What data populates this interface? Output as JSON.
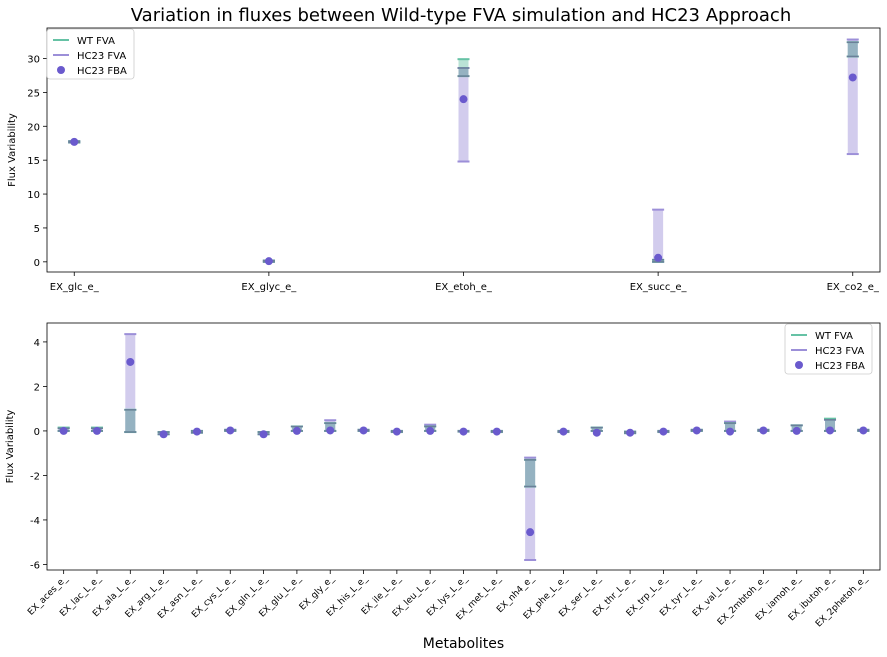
{
  "title": "Variation in fluxes between Wild-type FVA simulation and HC23 Approach",
  "colors": {
    "wt_fva": "#66c2a5",
    "hc23_fva": "#9c8fd8",
    "hc23_fba": "#6a5acd",
    "overlap": "#8da0b8"
  },
  "chart_data": [
    {
      "type": "errorbar",
      "title": "Variation in fluxes between Wild-type FVA simulation and HC23 Approach",
      "xlabel": "",
      "ylabel": "Flux Variability",
      "ylim": [
        -1.5,
        34.5
      ],
      "yticks": [
        0,
        5,
        10,
        15,
        20,
        25,
        30
      ],
      "legend_position": "top-left",
      "legend": [
        "WT FVA",
        "HC23 FVA",
        "HC23 FBA"
      ],
      "categories": [
        "EX_glc_e_",
        "EX_glyc_e_",
        "EX_etoh_e_",
        "EX_succ_e_",
        "EX_co2_e_"
      ],
      "series": [
        {
          "name": "WT FVA",
          "min": [
            17.6,
            0.0,
            27.4,
            0.0,
            30.3
          ],
          "max": [
            17.8,
            0.2,
            29.9,
            0.3,
            32.4
          ]
        },
        {
          "name": "HC23 FVA",
          "min": [
            17.6,
            0.0,
            14.8,
            0.0,
            15.9
          ],
          "max": [
            17.8,
            0.2,
            28.6,
            7.7,
            32.8
          ]
        },
        {
          "name": "HC23 FBA",
          "values": [
            17.7,
            0.1,
            24.0,
            0.6,
            27.2
          ]
        }
      ]
    },
    {
      "type": "errorbar",
      "title": "",
      "xlabel": "Metabolites",
      "ylabel": "Flux Variability",
      "ylim": [
        -6.25,
        4.85
      ],
      "yticks": [
        -6,
        -4,
        -2,
        0,
        2,
        4
      ],
      "legend_position": "top-right",
      "legend": [
        "WT FVA",
        "HC23 FVA",
        "HC23 FBA"
      ],
      "categories": [
        "EX_aces_e_",
        "EX_lac_L_e_",
        "EX_ala_L_e_",
        "EX_arg_L_e_",
        "EX_asn_L_e_",
        "EX_cys_L_e_",
        "EX_gln_L_e_",
        "EX_glu_L_e_",
        "EX_gly_e_",
        "EX_his_L_e_",
        "EX_ile_L_e_",
        "EX_leu_L_e_",
        "EX_lys_L_e_",
        "EX_met_L_e_",
        "EX_nh4_e_",
        "EX_phe_L_e_",
        "EX_ser_L_e_",
        "EX_thr_L_e_",
        "EX_trp_L_e_",
        "EX_tyr_L_e_",
        "EX_val_L_e_",
        "EX_2mbtoh_e_",
        "EX_iamoh_e_",
        "EX_ibutoh_e_",
        "EX_2phetoh_e_"
      ],
      "series": [
        {
          "name": "WT FVA",
          "min": [
            0.0,
            0.0,
            -0.05,
            -0.15,
            -0.08,
            0.0,
            -0.15,
            0.0,
            0.0,
            0.0,
            -0.05,
            0.0,
            -0.03,
            -0.05,
            -2.5,
            -0.05,
            0.0,
            -0.1,
            -0.05,
            0.0,
            0.0,
            0.0,
            0.0,
            0.0,
            0.0
          ],
          "max": [
            0.15,
            0.15,
            0.95,
            -0.05,
            0.0,
            0.05,
            -0.05,
            0.2,
            0.35,
            0.05,
            0.0,
            0.2,
            0.0,
            0.0,
            -1.3,
            0.0,
            0.15,
            -0.03,
            0.0,
            0.05,
            0.35,
            0.05,
            0.25,
            0.55,
            0.05
          ]
        },
        {
          "name": "HC23 FVA",
          "min": [
            0.0,
            0.0,
            -0.05,
            -0.15,
            -0.08,
            0.0,
            -0.15,
            0.0,
            0.0,
            0.0,
            -0.05,
            0.0,
            -0.03,
            -0.05,
            -5.8,
            -0.05,
            0.0,
            -0.1,
            -0.05,
            0.0,
            0.0,
            0.0,
            0.0,
            0.0,
            0.0
          ],
          "max": [
            0.12,
            0.12,
            4.35,
            -0.05,
            0.0,
            0.05,
            -0.05,
            0.2,
            0.48,
            0.05,
            0.0,
            0.28,
            0.0,
            0.0,
            -1.2,
            0.0,
            0.15,
            -0.03,
            0.0,
            0.05,
            0.42,
            0.05,
            0.25,
            0.5,
            0.05
          ]
        },
        {
          "name": "HC23 FBA",
          "values": [
            0.0,
            0.0,
            3.1,
            -0.15,
            -0.03,
            0.02,
            -0.15,
            0.0,
            0.02,
            0.02,
            -0.03,
            0.0,
            -0.03,
            -0.03,
            -4.55,
            -0.03,
            -0.08,
            -0.08,
            -0.03,
            0.02,
            -0.03,
            0.02,
            0.0,
            0.02,
            0.02
          ]
        }
      ]
    }
  ]
}
